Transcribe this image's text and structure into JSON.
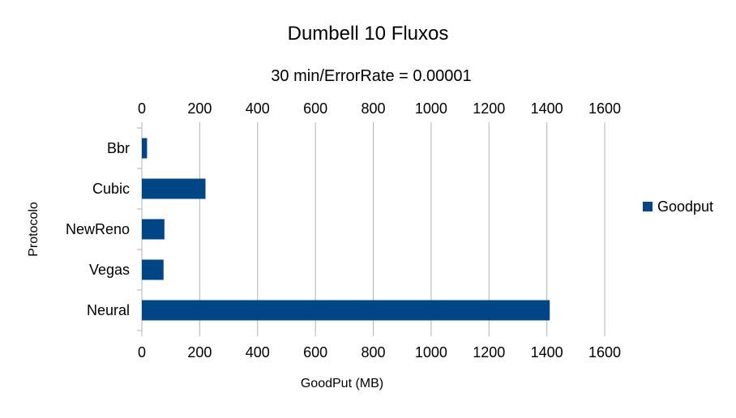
{
  "chart_data": {
    "type": "bar",
    "orientation": "horizontal",
    "title": "Dumbell 10 Fluxos",
    "subtitle": "30 min/ErrorRate = 0.00001",
    "xlabel": "GoodPut (MB)",
    "ylabel": "Protocolo",
    "categories": [
      "Bbr",
      "Cubic",
      "NewReno",
      "Vegas",
      "Neural"
    ],
    "series": [
      {
        "name": "Goodput",
        "values": [
          18,
          220,
          78,
          75,
          1410
        ],
        "color": "#004586"
      }
    ],
    "xlim": [
      0,
      1600
    ],
    "xticks": [
      0,
      200,
      400,
      600,
      800,
      1000,
      1200,
      1400,
      1600
    ],
    "grid": true,
    "legend_position": "right"
  }
}
